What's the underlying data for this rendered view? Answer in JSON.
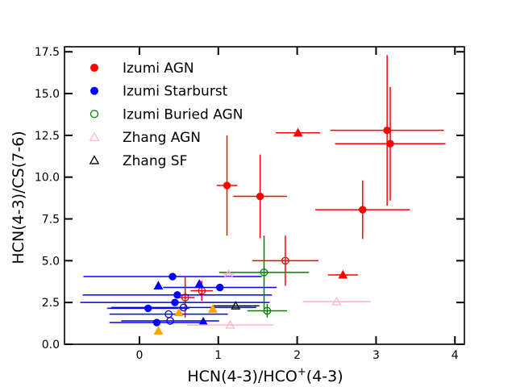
{
  "chart_data": {
    "type": "scatter",
    "xlabel": "HCN(4-3)/HCO",
    "xlabel_sup": "+",
    "xlabel_suffix": "(4-3)",
    "ylabel": "HCN(4-3)/CS(7-6)",
    "xlim": [
      -0.95,
      4.12
    ],
    "ylim": [
      0.0,
      17.8
    ],
    "xticks": [
      0,
      1,
      2,
      3,
      4
    ],
    "xtick_labels": [
      "0",
      "1",
      "2",
      "3",
      "4"
    ],
    "yticks": [
      0.0,
      2.5,
      5.0,
      7.5,
      10.0,
      12.5,
      15.0,
      17.5
    ],
    "ytick_labels": [
      "0.0",
      "2.5",
      "5.0",
      "7.5",
      "10.0",
      "12.5",
      "15.0",
      "17.5"
    ],
    "grid": false,
    "legend_position": "top-left",
    "legend": [
      {
        "label": "Izumi AGN",
        "marker": "circle-filled",
        "color": "#ff0000"
      },
      {
        "label": "Izumi Starburst",
        "marker": "circle-filled",
        "color": "#0000ff"
      },
      {
        "label": "Izumi Buried AGN",
        "marker": "circle-open",
        "color": "#008000"
      },
      {
        "label": "Zhang AGN",
        "marker": "triangle-open",
        "color": "#ffb6c1"
      },
      {
        "label": "Zhang SF",
        "marker": "triangle-open",
        "color": "#000000"
      }
    ],
    "series": [
      {
        "name": "Izumi AGN",
        "color": "#ff0000",
        "marker": "circle-filled",
        "points": [
          {
            "x": 1.11,
            "y": 9.5,
            "xerr": 0.13,
            "yerr": 3.0
          },
          {
            "x": 1.53,
            "y": 8.85,
            "xerr": 0.34,
            "yerr": 2.5
          },
          {
            "x": 2.83,
            "y": 8.05,
            "xerr": 0.6,
            "yerr": 1.75
          },
          {
            "x": 3.14,
            "y": 12.8,
            "xerr": 0.72,
            "yerr": 4.5
          },
          {
            "x": 3.18,
            "y": 12.0,
            "xerr": 0.7,
            "yerr": 3.4
          }
        ]
      },
      {
        "name": "Izumi AGN triangles",
        "color": "#ff0000",
        "marker": "triangle-filled",
        "points": [
          {
            "x": 2.01,
            "y": 12.65,
            "xerr": 0.28,
            "yerr": 0
          },
          {
            "x": 2.58,
            "y": 4.15,
            "xerr": 0.19,
            "yerr": 0
          }
        ]
      },
      {
        "name": "Izumi AGN open",
        "color": "#ff0000",
        "marker": "circle-open",
        "points": [
          {
            "x": 1.85,
            "y": 5.0,
            "xerr": 0.42,
            "yerr": 1.5
          },
          {
            "x": 0.58,
            "y": 2.8,
            "xerr": 0.12,
            "yerr": 1.2
          },
          {
            "x": 0.79,
            "y": 3.2,
            "xerr": 0.14,
            "yerr": 0.6
          }
        ]
      },
      {
        "name": "Izumi Starburst",
        "color": "#0000ff",
        "marker": "circle-filled",
        "points": [
          {
            "x": 0.42,
            "y": 4.05,
            "xerr": 1.13,
            "yerr": 0
          },
          {
            "x": 1.02,
            "y": 3.4,
            "xerr": 0.72,
            "yerr": 0
          },
          {
            "x": 0.48,
            "y": 2.95,
            "xerr": 1.2,
            "yerr": 0
          },
          {
            "x": 0.45,
            "y": 2.5,
            "xerr": 1.2,
            "yerr": 0
          },
          {
            "x": 0.11,
            "y": 2.15,
            "xerr": 0.52,
            "yerr": 0
          },
          {
            "x": 0.22,
            "y": 1.3,
            "xerr": 0.6,
            "yerr": 0
          }
        ]
      },
      {
        "name": "Izumi Starburst open",
        "color": "#0000ff",
        "marker": "circle-open",
        "points": [
          {
            "x": 0.37,
            "y": 1.8,
            "xerr": 0.75,
            "yerr": 0
          },
          {
            "x": 0.39,
            "y": 1.4,
            "xerr": 0.62,
            "yerr": 0
          },
          {
            "x": 0.56,
            "y": 2.2,
            "xerr": 0.92,
            "yerr": 0
          }
        ]
      },
      {
        "name": "Izumi Starburst triangles",
        "color": "#0000ff",
        "marker": "triangle-filled",
        "points": [
          {
            "x": 0.24,
            "y": 3.5,
            "xerr": 0,
            "yerr": 0
          },
          {
            "x": 0.76,
            "y": 3.6,
            "xerr": 0,
            "yerr": 0
          },
          {
            "x": 0.81,
            "y": 1.35,
            "xerr": 0,
            "yerr": 0
          }
        ]
      },
      {
        "name": "Izumi Buried AGN",
        "color": "#008000",
        "marker": "circle-open",
        "points": [
          {
            "x": 1.58,
            "y": 4.3,
            "xerr": 0.57,
            "yerr": 2.2
          },
          {
            "x": 1.62,
            "y": 2.0,
            "xerr": 0.25,
            "yerr": 0.4
          }
        ]
      },
      {
        "name": "Zhang AGN",
        "color": "#ffb6c1",
        "marker": "triangle-open",
        "points": [
          {
            "x": 1.13,
            "y": 4.2,
            "xerr": 0.08,
            "yerr": 0
          },
          {
            "x": 2.5,
            "y": 2.55,
            "xerr": 0.43,
            "yerr": 0
          },
          {
            "x": 1.15,
            "y": 1.15,
            "xerr": 0.55,
            "yerr": 0
          }
        ]
      },
      {
        "name": "Zhang SF",
        "color": "#000000",
        "marker": "triangle-open",
        "points": [
          {
            "x": 1.22,
            "y": 2.3,
            "xerr": 0.3,
            "yerr": 0
          }
        ]
      },
      {
        "name": "Orange",
        "color": "#ffa500",
        "marker": "triangle-filled",
        "points": [
          {
            "x": 0.24,
            "y": 0.8,
            "xerr": 0,
            "yerr": 0
          },
          {
            "x": 0.5,
            "y": 1.9,
            "xerr": 0,
            "yerr": 0
          },
          {
            "x": 0.93,
            "y": 2.1,
            "xerr": 0,
            "yerr": 0
          }
        ]
      }
    ]
  }
}
